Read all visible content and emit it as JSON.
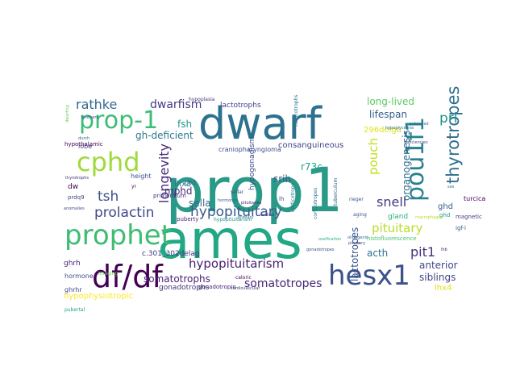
{
  "figure": {
    "kind": "word-cloud"
  },
  "words": [
    {
      "text": "prop1",
      "color": "#2a9a88"
    },
    {
      "text": "ames",
      "color": "#22a884"
    },
    {
      "text": "dwarf",
      "color": "#2c728e"
    },
    {
      "text": "prophet",
      "color": "#3fbc73"
    },
    {
      "text": "hesx1",
      "color": "#3b528b"
    },
    {
      "text": "df/df",
      "color": "#440154"
    },
    {
      "text": "prop-1",
      "color": "#3cbc75"
    },
    {
      "text": "pou1f1",
      "color": "#27808e"
    },
    {
      "text": "cphd",
      "color": "#9fda3a"
    },
    {
      "text": "hypopituitary",
      "color": "#38598c"
    },
    {
      "text": "hypopituitarism",
      "color": "#481f70"
    },
    {
      "text": "thyrotropes",
      "color": "#2e6e8e"
    },
    {
      "text": "prolactin",
      "color": "#3e4a89"
    },
    {
      "text": "rathke",
      "color": "#31688e"
    },
    {
      "text": "longevity",
      "color": "#472c7a"
    },
    {
      "text": "somatotropes",
      "color": "#482576"
    },
    {
      "text": "tsh",
      "color": "#3b528b"
    },
    {
      "text": "dwarfism",
      "color": "#443983"
    },
    {
      "text": "snell",
      "color": "#453781"
    },
    {
      "text": "pituitary",
      "color": "#b8de29"
    },
    {
      "text": "pit1",
      "color": "#46337e"
    },
    {
      "text": "pouch",
      "color": "#c2df23"
    },
    {
      "text": "prl",
      "color": "#1f948c"
    },
    {
      "text": "srih",
      "color": "#39568c"
    },
    {
      "text": "lactotropes",
      "color": "#3a538b"
    },
    {
      "text": "anterior",
      "color": "#3f4788"
    },
    {
      "text": "siblings",
      "color": "#414487"
    },
    {
      "text": "hypophysiotropic",
      "color": "#fde725"
    },
    {
      "text": "somatotrophs",
      "color": "#482475"
    },
    {
      "text": "gh-deficient",
      "color": "#2a788e"
    },
    {
      "text": "sella",
      "color": "#31688e"
    },
    {
      "text": "mphd",
      "color": "#482878"
    },
    {
      "text": "ghd",
      "color": "#355f8d"
    },
    {
      "text": "acth",
      "color": "#2d708e"
    },
    {
      "text": "fsh",
      "color": "#1f968b"
    },
    {
      "text": "lhx3",
      "color": "#2c738e"
    },
    {
      "text": "consanguineous",
      "color": "#404688"
    },
    {
      "text": "lifespan",
      "color": "#355e8d"
    },
    {
      "text": "craniopharyngioma",
      "color": "#3e4c8a"
    },
    {
      "text": "hypogonadism",
      "color": "#3d4e8a"
    },
    {
      "text": "296delga",
      "color": "#dde318"
    },
    {
      "text": "long-lived",
      "color": "#5ec962"
    },
    {
      "text": "lactotrophs",
      "color": "#424086"
    },
    {
      "text": "gonadotrophs",
      "color": "#46327e"
    },
    {
      "text": "organogenesis",
      "color": "#2f6c8e"
    },
    {
      "text": "c.301_302delag",
      "color": "#453882"
    },
    {
      "text": "hormone",
      "color": "#3d4d8a"
    },
    {
      "text": "lobe",
      "color": "#453781"
    },
    {
      "text": "height",
      "color": "#3a548c"
    },
    {
      "text": "ghrh",
      "color": "#482677"
    },
    {
      "text": "tuberculum",
      "color": "#34618d"
    },
    {
      "text": "lhx4",
      "color": "#dfe318"
    },
    {
      "text": "gh1",
      "color": "#31688e"
    },
    {
      "text": "dw",
      "color": "#440154"
    },
    {
      "text": "lh",
      "color": "#3a548c"
    },
    {
      "text": "corticotrope",
      "color": "#2c738e"
    },
    {
      "text": "puberty",
      "color": "#482878"
    },
    {
      "text": "r73c",
      "color": "#21a685"
    },
    {
      "text": "primordium",
      "color": "#472d7b"
    },
    {
      "text": "gland",
      "color": "#2ab07f"
    },
    {
      "text": "turcica",
      "color": "#440154"
    },
    {
      "text": "magnetic",
      "color": "#433e85"
    },
    {
      "text": "igf-i",
      "color": "#39568c"
    },
    {
      "text": "histofluorescence",
      "color": "#4ac16d"
    },
    {
      "text": "prdq9",
      "color": "#404688"
    },
    {
      "text": "ghrhr",
      "color": "#3e4989"
    },
    {
      "text": "imaging",
      "color": "#6ece58"
    },
    {
      "text": "pubertal",
      "color": "#1f9e89"
    },
    {
      "text": "gonadotropin",
      "color": "#482475"
    },
    {
      "text": "hypothalamic",
      "color": "#440154"
    },
    {
      "text": "hypoplasia",
      "color": "#453882"
    },
    {
      "text": "aging",
      "color": "#3b528b"
    },
    {
      "text": "sellar",
      "color": "#3b528b"
    },
    {
      "text": "decline",
      "color": "#453781"
    },
    {
      "text": "extended",
      "color": "#2c728e"
    },
    {
      "text": "brothers",
      "color": "#3e4989"
    },
    {
      "text": "corticotrophs",
      "color": "#2a788e"
    },
    {
      "text": "lhb",
      "color": "#481a6c"
    },
    {
      "text": "hypopituitarism",
      "color": "#1f988b"
    },
    {
      "text": "corticotropes",
      "color": "#2c738e"
    },
    {
      "text": "yr",
      "color": "#440154"
    },
    {
      "text": "ghd",
      "color": "#1fa088"
    },
    {
      "text": "sex",
      "color": "#2c728e"
    },
    {
      "text": "rieger",
      "color": "#3b528b"
    },
    {
      "text": "ossification",
      "color": "#29af7f"
    },
    {
      "text": "durch",
      "color": "#31688e"
    },
    {
      "text": "caloric",
      "color": "#440154"
    },
    {
      "text": "pituitaries",
      "color": "#481f70"
    },
    {
      "text": "dwarfing",
      "color": "#6ece58"
    },
    {
      "text": "anomalies",
      "color": "#3e4a89"
    },
    {
      "text": "cardiovascular",
      "color": "#433e85"
    },
    {
      "text": "macrophages",
      "color": "#b5de2b"
    },
    {
      "text": "gonadotropes",
      "color": "#39558c"
    },
    {
      "text": "hypoglycemia",
      "color": "#2e6f8e"
    },
    {
      "text": "thyrotrophs",
      "color": "#472f7d"
    },
    {
      "text": "hormones",
      "color": "#355f8d"
    },
    {
      "text": "primary",
      "color": "#2d708e"
    },
    {
      "text": "oligogenic",
      "color": "#31688e"
    },
    {
      "text": "deficiencies",
      "color": "#3b528b"
    },
    {
      "text": "pituitary",
      "color": "#3b528b"
    }
  ]
}
